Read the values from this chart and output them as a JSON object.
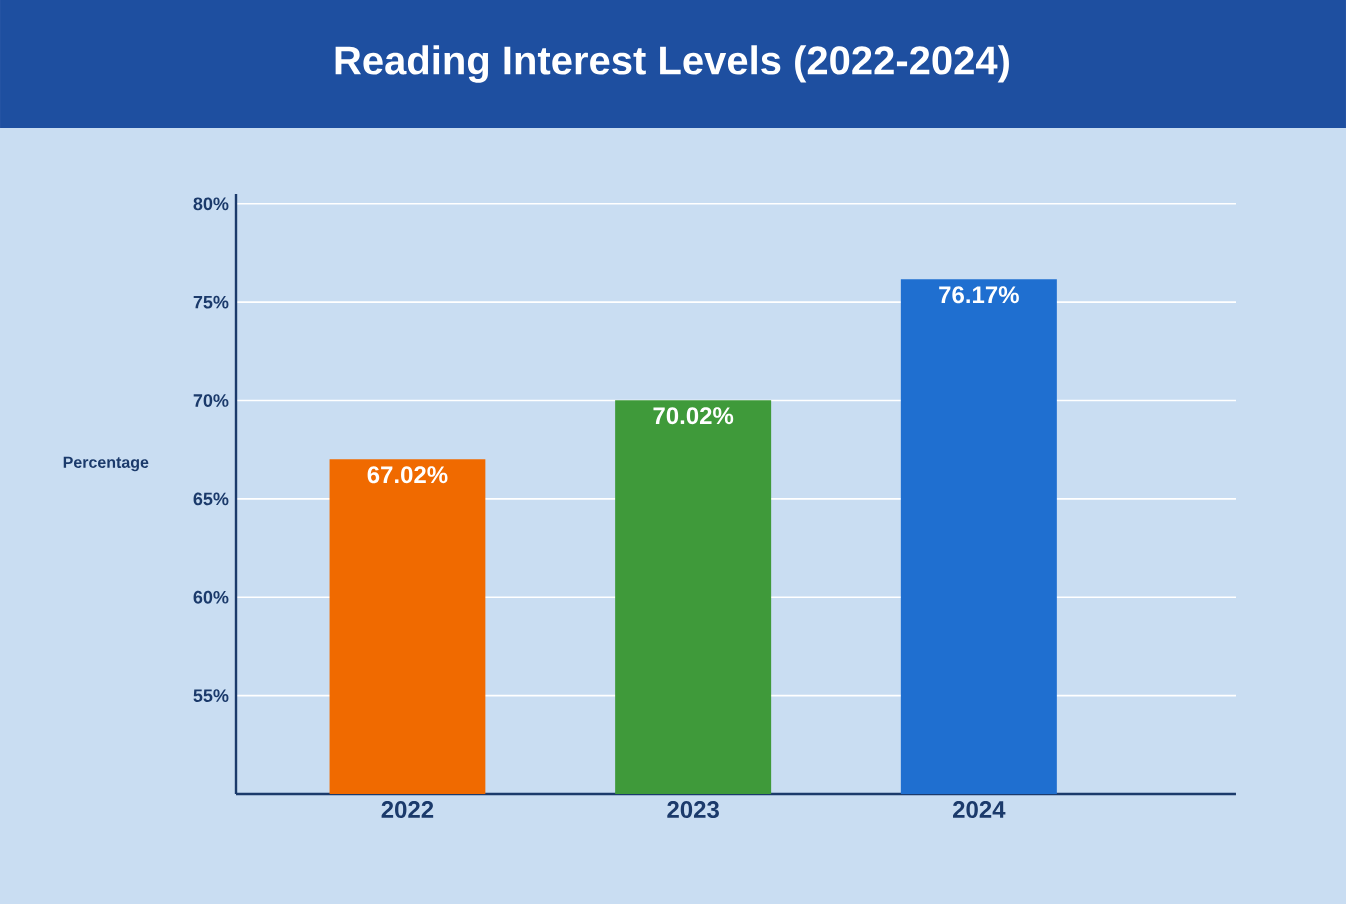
{
  "chart_data": {
    "type": "bar",
    "title": "Reading Interest Levels (2022-2024)",
    "ylabel": "Percentage",
    "categories": [
      "2022",
      "2023",
      "2024"
    ],
    "values": [
      67.02,
      70.02,
      76.17
    ],
    "colors": [
      "#f06a00",
      "#3f9a3a",
      "#1f6fd0"
    ],
    "value_labels": [
      "67.02%",
      "70.02%",
      "76.17%"
    ],
    "ylim": [
      50,
      80.5
    ],
    "yticks": [
      {
        "value": 55,
        "label": "55%"
      },
      {
        "value": 60,
        "label": "60%"
      },
      {
        "value": 65,
        "label": "65%"
      },
      {
        "value": 70,
        "label": "70%"
      },
      {
        "value": 75,
        "label": "75%"
      },
      {
        "value": 80,
        "label": "80%"
      }
    ],
    "grid": "y"
  }
}
